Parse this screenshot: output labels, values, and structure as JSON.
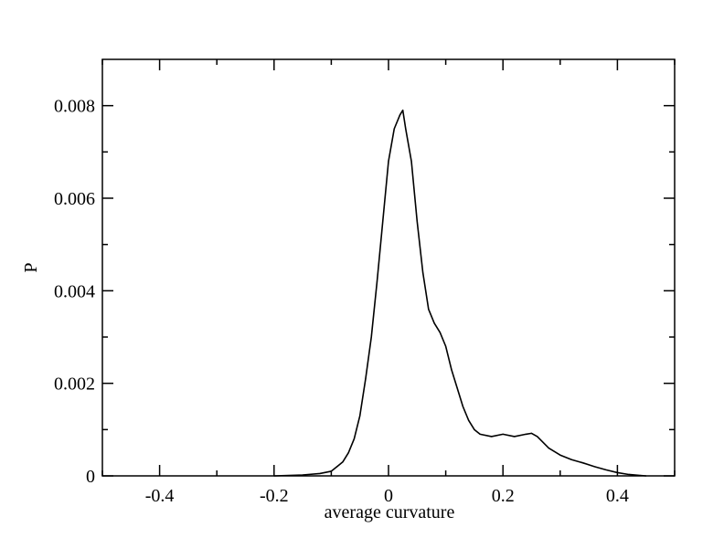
{
  "chart_data": {
    "type": "line",
    "title": "",
    "xlabel": "average curvature",
    "ylabel": "P",
    "xlim": [
      -0.5,
      0.5
    ],
    "ylim": [
      0,
      0.009
    ],
    "x_ticks": [
      -0.4,
      -0.2,
      0,
      0.2,
      0.4
    ],
    "x_tick_labels": [
      "-0.4",
      "-0.2",
      "0",
      "0.2",
      "0.4"
    ],
    "y_ticks": [
      0,
      0.002,
      0.004,
      0.006,
      0.008
    ],
    "y_tick_labels": [
      "0",
      "0.002",
      "0.004",
      "0.006",
      "0.008"
    ],
    "grid": false,
    "legend": "none",
    "series": [
      {
        "color": "#000000",
        "x": [
          -0.2,
          -0.15,
          -0.12,
          -0.1,
          -0.09,
          -0.08,
          -0.07,
          -0.06,
          -0.05,
          -0.04,
          -0.03,
          -0.02,
          -0.01,
          0.0,
          0.01,
          0.02,
          0.025,
          0.03,
          0.04,
          0.05,
          0.06,
          0.07,
          0.08,
          0.09,
          0.1,
          0.11,
          0.12,
          0.13,
          0.14,
          0.15,
          0.16,
          0.18,
          0.2,
          0.22,
          0.24,
          0.25,
          0.26,
          0.28,
          0.3,
          0.32,
          0.34,
          0.36,
          0.38,
          0.4,
          0.42,
          0.44,
          0.45
        ],
        "values": [
          0.0,
          2e-05,
          5e-05,
          0.0001,
          0.0002,
          0.0003,
          0.0005,
          0.0008,
          0.0013,
          0.0021,
          0.003,
          0.0042,
          0.0055,
          0.0068,
          0.0075,
          0.0078,
          0.0079,
          0.0075,
          0.0068,
          0.0055,
          0.0044,
          0.0036,
          0.0033,
          0.0031,
          0.0028,
          0.0023,
          0.0019,
          0.0015,
          0.0012,
          0.001,
          0.0009,
          0.00085,
          0.0009,
          0.00085,
          0.0009,
          0.00092,
          0.00085,
          0.0006,
          0.00045,
          0.00035,
          0.00028,
          0.0002,
          0.00013,
          7e-05,
          3e-05,
          1e-05,
          0.0
        ]
      }
    ]
  }
}
